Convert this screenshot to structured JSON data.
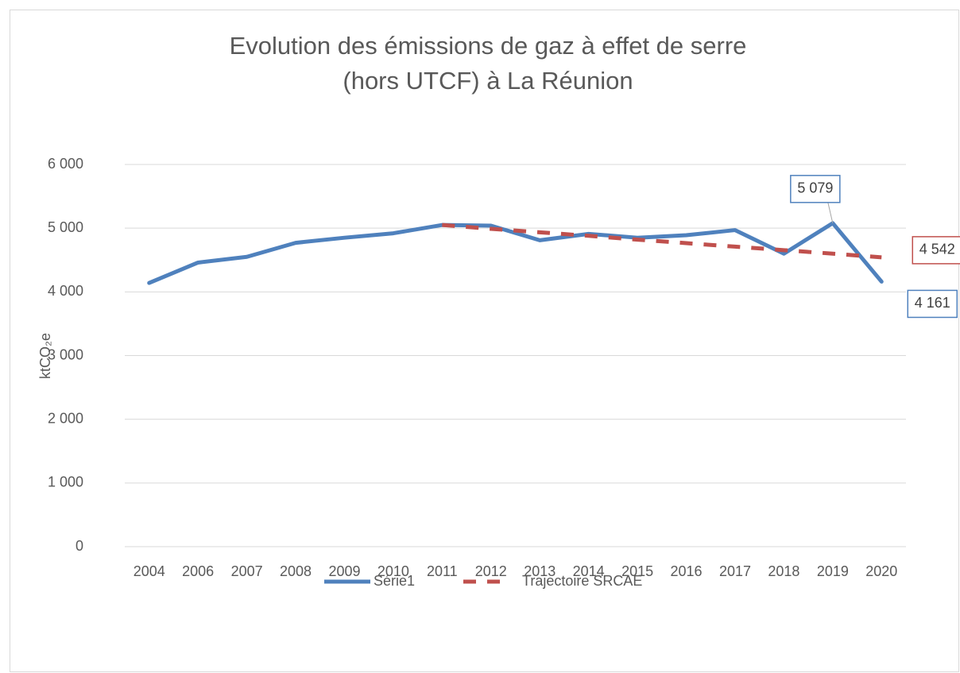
{
  "chart_data": {
    "type": "line",
    "title": [
      "Evolution des émissions de gaz à effet de serre",
      "(hors UTCF) à La Réunion"
    ],
    "ylabel": "ktCO₂e",
    "categories": [
      "2004",
      "2006",
      "2007",
      "2008",
      "2009",
      "2010",
      "2011",
      "2012",
      "2013",
      "2014",
      "2015",
      "2016",
      "2017",
      "2018",
      "2019",
      "2020"
    ],
    "series": [
      {
        "name": "Série1",
        "color": "#4f81bd",
        "dashed": false,
        "values": [
          4140,
          4460,
          4550,
          4770,
          4850,
          4920,
          5050,
          5040,
          4810,
          4910,
          4850,
          4890,
          4970,
          4600,
          5079,
          4161
        ],
        "value_labels": [
          null,
          null,
          null,
          null,
          null,
          null,
          null,
          null,
          null,
          null,
          null,
          null,
          null,
          null,
          "5 079",
          "4 161"
        ]
      },
      {
        "name": "Trajectoire SRCAE",
        "color": "#c0504d",
        "dashed": true,
        "values": [
          null,
          null,
          null,
          null,
          null,
          null,
          5050,
          4990,
          4935,
          4880,
          4820,
          4765,
          4710,
          4655,
          4600,
          4542
        ],
        "value_labels": [
          null,
          null,
          null,
          null,
          null,
          null,
          null,
          null,
          null,
          null,
          null,
          null,
          null,
          null,
          null,
          "4 542"
        ]
      }
    ],
    "ylim": [
      0,
      6000
    ],
    "yticks": [
      0,
      {
        "value": 1000,
        "label": "1 000"
      },
      {
        "value": 2000,
        "label": "2 000"
      },
      {
        "value": 3000,
        "label": "3 000"
      },
      {
        "value": 4000,
        "label": "4 000"
      },
      {
        "value": 5000,
        "label": "5 000"
      },
      {
        "value": 6000,
        "label": "6 000"
      }
    ],
    "grid": true,
    "legend": "bottom"
  }
}
